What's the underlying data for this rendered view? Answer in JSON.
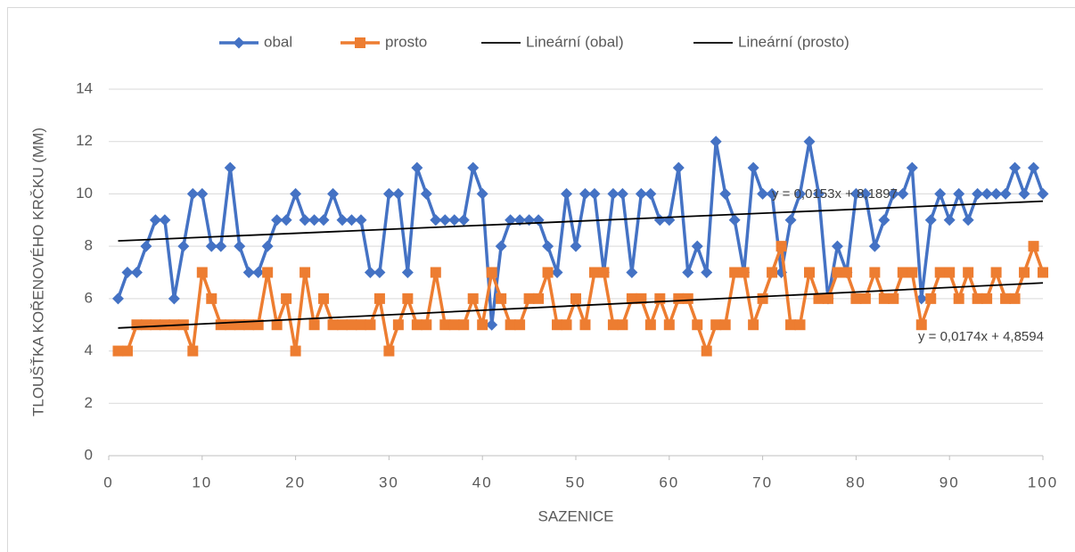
{
  "chart_data": {
    "type": "line",
    "x_label": "SAZENICE",
    "y_label": "TLOUŠŤKA KOŘENOVÉHO KRČKU (MM)",
    "x": [
      1,
      2,
      3,
      4,
      5,
      6,
      7,
      8,
      9,
      10,
      11,
      12,
      13,
      14,
      15,
      16,
      17,
      18,
      19,
      20,
      21,
      22,
      23,
      24,
      25,
      26,
      27,
      28,
      29,
      30,
      31,
      32,
      33,
      34,
      35,
      36,
      37,
      38,
      39,
      40,
      41,
      42,
      43,
      44,
      45,
      46,
      47,
      48,
      49,
      50,
      51,
      52,
      53,
      54,
      55,
      56,
      57,
      58,
      59,
      60,
      61,
      62,
      63,
      64,
      65,
      66,
      67,
      68,
      69,
      70,
      71,
      72,
      73,
      74,
      75,
      76,
      77,
      78,
      79,
      80,
      81,
      82,
      83,
      84,
      85,
      86,
      87,
      88,
      89,
      90,
      91,
      92,
      93,
      94,
      95,
      96,
      97,
      98,
      99,
      100
    ],
    "series": [
      {
        "name": "obal",
        "color": "#4472c4",
        "marker": "diamond",
        "values": [
          6,
          7,
          7,
          8,
          9,
          9,
          6,
          8,
          10,
          10,
          8,
          8,
          11,
          8,
          7,
          7,
          8,
          9,
          9,
          10,
          9,
          9,
          9,
          10,
          9,
          9,
          9,
          7,
          7,
          10,
          10,
          7,
          11,
          10,
          9,
          9,
          9,
          9,
          11,
          10,
          5,
          8,
          9,
          9,
          9,
          9,
          8,
          7,
          10,
          8,
          10,
          10,
          7,
          10,
          10,
          7,
          10,
          10,
          9,
          9,
          11,
          7,
          8,
          7,
          12,
          10,
          9,
          7,
          11,
          10,
          10,
          7,
          9,
          10,
          12,
          10,
          6,
          8,
          7,
          10,
          10,
          8,
          9,
          10,
          10,
          11,
          6,
          9,
          10,
          9,
          10,
          9,
          10,
          10,
          10,
          10,
          11,
          10,
          11,
          10
        ]
      },
      {
        "name": "prosto",
        "color": "#ed7d31",
        "marker": "square",
        "values": [
          4,
          4,
          5,
          5,
          5,
          5,
          5,
          5,
          4,
          7,
          6,
          5,
          5,
          5,
          5,
          5,
          7,
          5,
          6,
          4,
          7,
          5,
          6,
          5,
          5,
          5,
          5,
          5,
          6,
          4,
          5,
          6,
          5,
          5,
          7,
          5,
          5,
          5,
          6,
          5,
          7,
          6,
          5,
          5,
          6,
          6,
          7,
          5,
          5,
          6,
          5,
          7,
          7,
          5,
          5,
          6,
          6,
          5,
          6,
          5,
          6,
          6,
          5,
          4,
          5,
          5,
          7,
          7,
          5,
          6,
          7,
          8,
          5,
          5,
          7,
          6,
          6,
          7,
          7,
          6,
          6,
          7,
          6,
          6,
          7,
          7,
          5,
          6,
          7,
          7,
          6,
          7,
          6,
          6,
          7,
          6,
          6,
          7,
          8,
          7
        ]
      }
    ],
    "trendlines": [
      {
        "name": "Lineární (obal)",
        "color": "#000000",
        "equation": "y = 0,0153x + 8,1897",
        "slope": 0.0153,
        "intercept": 8.1897
      },
      {
        "name": "Lineární (prosto)",
        "color": "#000000",
        "equation": "y = 0,0174x + 4,8594",
        "slope": 0.0174,
        "intercept": 4.8594
      }
    ],
    "xlim": [
      0,
      100
    ],
    "xticks": [
      0,
      10,
      20,
      30,
      40,
      50,
      60,
      70,
      80,
      90,
      100
    ],
    "ylim": [
      0,
      14
    ],
    "yticks": [
      0,
      2,
      4,
      6,
      8,
      10,
      12,
      14
    ],
    "grid": true,
    "legend": "top"
  }
}
